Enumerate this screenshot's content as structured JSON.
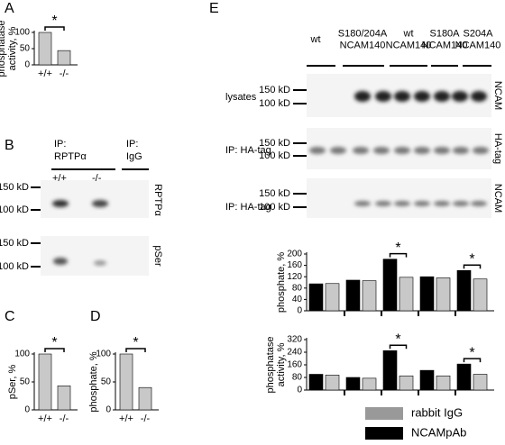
{
  "panel_letters": [
    "A",
    "B",
    "C",
    "D",
    "E"
  ],
  "blots": {
    "B": {
      "ip_headers": [
        [
          "IP:",
          "RPTPα"
        ],
        [
          "IP:",
          "IgG"
        ]
      ],
      "genotypes": [
        "+/+",
        "-/-"
      ],
      "markers": [
        "150 kD",
        "100 kD"
      ],
      "rows": [
        "RPTPα",
        "pSer"
      ]
    },
    "E": {
      "columns": [
        [
          "wt"
        ],
        [
          "S180/204A",
          "NCAM140"
        ],
        [
          "wt",
          "NCAM140"
        ],
        [
          "S180A",
          "NCAM140"
        ],
        [
          "S204A",
          "NCAM140"
        ]
      ],
      "markers": [
        "150 kD",
        "100 kD"
      ],
      "row_labels": [
        "lysates",
        "IP: HA-tag",
        "IP: HA-tag"
      ],
      "row_targets": [
        "NCAM",
        "HA-tag",
        "NCAM"
      ]
    }
  },
  "chart_data": [
    {
      "type": "bar",
      "ylabel": [
        "phosphatase",
        "activity, %"
      ],
      "categories": [
        "+/+",
        "-/-"
      ],
      "values": [
        100,
        44
      ],
      "color": "#c8c8c8",
      "ylim": [
        0,
        100
      ],
      "yticks": [
        0,
        50,
        100
      ],
      "annotations": [
        "*"
      ]
    },
    {
      "type": "bar",
      "ylabel": [
        "pSer, %"
      ],
      "categories": [
        "+/+",
        "-/-"
      ],
      "values": [
        100,
        43
      ],
      "color": "#c8c8c8",
      "ylim": [
        0,
        100
      ],
      "yticks": [
        0,
        50,
        100
      ],
      "annotations": [
        "*"
      ]
    },
    {
      "type": "bar",
      "ylabel": [
        "phosphate, %"
      ],
      "categories": [
        "+/+",
        "-/-"
      ],
      "values": [
        100,
        40
      ],
      "color": "#c8c8c8",
      "ylim": [
        0,
        100
      ],
      "yticks": [
        0,
        50,
        100
      ],
      "annotations": [
        "*"
      ]
    },
    {
      "type": "grouped-bar",
      "ylabel": [
        "phosphate, %"
      ],
      "categories": [
        null,
        null,
        null,
        null,
        null
      ],
      "series": [
        {
          "color": "#000000",
          "values": [
            95,
            108,
            182,
            120,
            142
          ]
        },
        {
          "color": "#c8c8c8",
          "values": [
            96,
            106,
            118,
            116,
            112
          ]
        }
      ],
      "ylim": [
        0,
        200
      ],
      "yticks": [
        0,
        40,
        80,
        120,
        160,
        200
      ],
      "annotations": [
        "*",
        "*"
      ]
    },
    {
      "type": "grouped-bar",
      "ylabel": [
        "phosphatase",
        "activity, %"
      ],
      "categories": [
        null,
        null,
        null,
        null,
        null
      ],
      "series": [
        {
          "name": "NCAMpAb",
          "color": "#000000",
          "values": [
            100,
            80,
            250,
            125,
            165
          ]
        },
        {
          "name": "rabbit IgG",
          "color": "#c8c8c8",
          "values": [
            95,
            75,
            90,
            90,
            100
          ]
        }
      ],
      "ylim": [
        0,
        320
      ],
      "yticks": [
        0,
        80,
        160,
        240,
        320
      ],
      "annotations": [
        "*",
        "*"
      ]
    }
  ]
}
